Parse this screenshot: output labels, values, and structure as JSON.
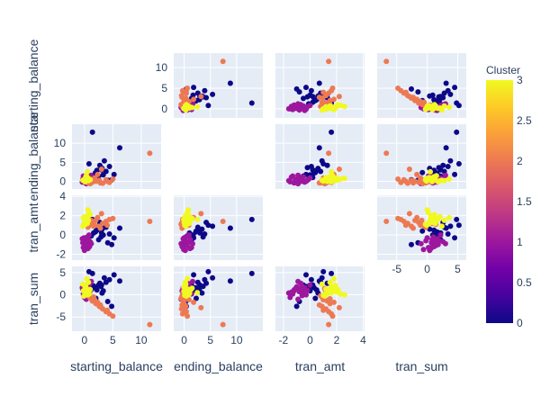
{
  "chart_data": {
    "type": "scatter",
    "subtype": "scatter-matrix",
    "title": "",
    "dimensions": [
      "starting_balance",
      "ending_balance",
      "tran_amt",
      "tran_sum"
    ],
    "diagonal_visible": false,
    "axes": {
      "starting_balance": {
        "range": [
          -2.2,
          13.5
        ],
        "ticks": [
          0,
          5,
          10
        ]
      },
      "ending_balance": {
        "range": [
          -2.0,
          15.0
        ],
        "ticks": [
          0,
          5,
          10
        ]
      },
      "tran_amt": {
        "range": [
          -2.6,
          4.1
        ],
        "ticks": [
          -2,
          0,
          2,
          4
        ]
      },
      "tran_sum": {
        "range": [
          -8.2,
          6.4
        ],
        "ticks": [
          -5,
          0,
          5
        ]
      }
    },
    "colorbar": {
      "title": "Cluster",
      "range": [
        0,
        3
      ],
      "ticks": [
        0,
        0.5,
        1,
        1.5,
        2,
        2.5,
        3
      ],
      "colorscale": [
        "#0d0887",
        "#46039f",
        "#7201a8",
        "#9c179e",
        "#bd3786",
        "#d8576b",
        "#ed7953",
        "#fb9f3a",
        "#fdca26",
        "#f0f921"
      ]
    },
    "series": [
      {
        "cluster": 0,
        "color": "#0d0887",
        "x_starting_balance": [
          1.2,
          1.9,
          2.5,
          3.1,
          3.8,
          4.4,
          5.2,
          0.8,
          1.6,
          2.2,
          2.9,
          3.5,
          4.1,
          4.8,
          2.0,
          2.7,
          3.3,
          1.4,
          6.2,
          3.0
        ],
        "x_ending_balance": [
          0.6,
          2.2,
          1.4,
          3.4,
          2.6,
          3.9,
          1.8,
          4.6,
          1.0,
          2.9,
          3.6,
          5.4,
          0.3,
          0.4,
          2.3,
          4.2,
          1.7,
          12.9,
          8.8,
          3.0
        ],
        "x_tran_amt": [
          -0.1,
          0.3,
          -0.5,
          0.6,
          0.8,
          0.1,
          -0.3,
          1.0,
          0.2,
          0.5,
          -0.2,
          0.9,
          -0.8,
          -1.0,
          0.4,
          1.3,
          0.0,
          1.6,
          0.7,
          0.2
        ],
        "x_tran_sum": [
          1.2,
          1.6,
          2.2,
          0.4,
          2.8,
          3.4,
          4.5,
          5.2,
          2.0,
          1.1,
          1.9,
          3.8,
          -1.5,
          -2.6,
          -0.8,
          2.6,
          0.9,
          4.8,
          3.1,
          2.2
        ]
      },
      {
        "cluster": 1,
        "color": "#9c179e",
        "x_starting_balance": [
          0.0,
          0.2,
          -0.3,
          0.4,
          0.6,
          -0.4,
          0.1,
          0.8,
          0.3,
          -0.2,
          0.5,
          1.0,
          0.0,
          0.7,
          0.2,
          -0.1,
          0.4,
          0.9,
          0.1,
          1.2
        ],
        "x_ending_balance": [
          0.2,
          -0.4,
          0.6,
          0.0,
          1.1,
          -0.2,
          0.4,
          0.9,
          -0.6,
          1.4,
          0.3,
          0.7,
          -0.1,
          1.2,
          0.5,
          0.0,
          0.8,
          -0.3,
          0.2,
          1.6
        ],
        "x_tran_amt": [
          -1.6,
          -1.2,
          -0.8,
          -0.6,
          -1.4,
          -0.4,
          -1.0,
          0.0,
          -0.9,
          -1.3,
          -0.2,
          -0.7,
          -1.5,
          -0.5,
          -1.1,
          -0.3,
          -0.8,
          -1.2,
          -0.6,
          -0.9
        ],
        "x_tran_sum": [
          0.4,
          0.9,
          1.3,
          -0.2,
          0.6,
          1.6,
          1.8,
          2.2,
          -1.0,
          0.2,
          1.0,
          2.6,
          -0.6,
          0.8,
          1.4,
          0.0,
          0.7,
          1.1,
          2.0,
          3.0
        ]
      },
      {
        "cluster": 2,
        "color": "#ed7953",
        "x_starting_balance": [
          0.6,
          1.0,
          1.4,
          2.0,
          2.6,
          3.2,
          3.8,
          4.4,
          5.0,
          1.8,
          0.9,
          2.3,
          0.2,
          1.6,
          3.0,
          11.5,
          0.5,
          1.2,
          2.8,
          4.0
        ],
        "x_ending_balance": [
          -0.4,
          -0.6,
          -0.2,
          0.0,
          0.3,
          -0.5,
          0.4,
          -0.3,
          0.6,
          0.9,
          -0.1,
          1.8,
          0.2,
          0.1,
          3.2,
          7.4,
          -0.2,
          0.5,
          -0.4,
          0.0
        ],
        "x_tran_amt": [
          0.8,
          1.1,
          1.3,
          1.5,
          0.9,
          1.2,
          1.4,
          1.6,
          1.7,
          1.0,
          1.3,
          1.8,
          1.1,
          0.9,
          2.2,
          1.4,
          1.2,
          1.5,
          0.7,
          1.0
        ],
        "x_tran_sum": [
          -0.2,
          -0.8,
          -1.4,
          -2.0,
          -2.6,
          -3.2,
          -3.8,
          -4.3,
          -4.8,
          -1.1,
          0.4,
          -1.7,
          1.4,
          -0.5,
          -2.9,
          -6.7,
          0.8,
          -0.9,
          -2.3,
          -3.5
        ]
      },
      {
        "cluster": 3,
        "color": "#f0f921",
        "x_starting_balance": [
          0.0,
          0.3,
          -0.2,
          0.5,
          0.1,
          0.6,
          -0.1,
          0.4,
          0.2,
          0.8,
          0.0,
          0.3,
          -0.3,
          0.6,
          0.1,
          0.5,
          1.0,
          0.2,
          0.4,
          0.7
        ],
        "x_ending_balance": [
          0.1,
          0.5,
          0.3,
          0.7,
          -0.1,
          0.9,
          0.4,
          1.2,
          0.2,
          0.6,
          0.0,
          1.5,
          0.3,
          0.8,
          0.5,
          2.5,
          0.4,
          1.0,
          0.6,
          0.2
        ],
        "x_tran_amt": [
          1.0,
          1.4,
          1.8,
          1.2,
          1.6,
          2.0,
          1.1,
          1.5,
          1.9,
          2.3,
          1.3,
          1.7,
          0.9,
          2.6,
          1.4,
          1.6,
          2.1,
          1.2,
          1.8,
          1.5
        ],
        "x_tran_sum": [
          -0.1,
          0.4,
          0.9,
          1.3,
          1.8,
          0.6,
          -0.3,
          1.1,
          2.1,
          0.2,
          0.8,
          1.5,
          2.4,
          0.0,
          1.0,
          0.5,
          1.2,
          0.3,
          3.6,
          2.8
        ]
      }
    ]
  }
}
